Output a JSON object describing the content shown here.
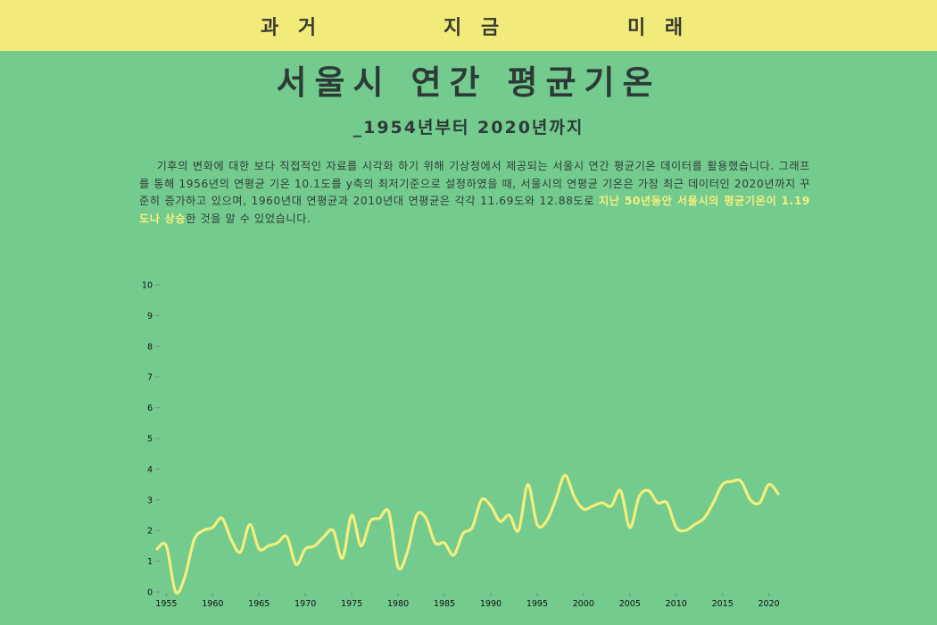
{
  "nav": {
    "items": [
      "과 거",
      "지 금",
      "미 래"
    ]
  },
  "header": {
    "title": "서울시 연간 평균기온",
    "subtitle": "_1954년부터 2020년까지"
  },
  "description": {
    "text_before": "기후의 변화에 대한 보다 직접적인 자료를 시각화 하기 위해 기상청에서 제공되는 서울시 연간 평균기온 데이터를 활용했습니다. 그래프를 통해 1956년의 연평균 기온 10.1도를 y축의 최저기준으로 설정하였을 때, 서울시의 연평균 기온은 가장 최근 데이터인 2020년까지 꾸준히 증가하고 있으며, 1960년대 연평균과 2010년대 연평균은 각각 11.69도와 12.88도로 ",
    "highlight": "지난 50년동안 서울시의 평균기온이 1.19도나 상승",
    "text_after": "한 것을 알 수 있었습니다."
  },
  "colors": {
    "background": "#74cb8e",
    "nav_background": "#f1ec7a",
    "line": "#f4ee7c",
    "highlight_text": "#f6ef7c"
  },
  "chart_data": {
    "type": "line",
    "title": "",
    "xlabel": "",
    "ylabel": "",
    "x_ticks": [
      1955,
      1960,
      1965,
      1970,
      1975,
      1980,
      1985,
      1990,
      1995,
      2000,
      2005,
      2010,
      2015,
      2020
    ],
    "y_ticks": [
      0,
      1,
      2,
      3,
      4,
      5,
      6,
      7,
      8,
      9,
      10
    ],
    "xlim": [
      1954,
      2021
    ],
    "ylim": [
      0,
      10
    ],
    "grid": false,
    "series": [
      {
        "x": [
          1954,
          1955,
          1956,
          1957,
          1958,
          1959,
          1960,
          1961,
          1962,
          1963,
          1964,
          1965,
          1966,
          1967,
          1968,
          1969,
          1970,
          1971,
          1972,
          1973,
          1974,
          1975,
          1976,
          1977,
          1978,
          1979,
          1980,
          1981,
          1982,
          1983,
          1984,
          1985,
          1986,
          1987,
          1988,
          1989,
          1990,
          1991,
          1992,
          1993,
          1994,
          1995,
          1996,
          1997,
          1998,
          1999,
          2000,
          2001,
          2002,
          2003,
          2004,
          2005,
          2006,
          2007,
          2008,
          2009,
          2010,
          2011,
          2012,
          2013,
          2014,
          2015,
          2016,
          2017,
          2018,
          2019,
          2020,
          2021
        ],
        "y": [
          1.4,
          1.5,
          0.0,
          0.5,
          1.7,
          2.0,
          2.1,
          2.4,
          1.7,
          1.3,
          2.2,
          1.4,
          1.5,
          1.6,
          1.8,
          0.9,
          1.4,
          1.5,
          1.8,
          2.0,
          1.1,
          2.5,
          1.5,
          2.3,
          2.4,
          2.6,
          0.8,
          1.3,
          2.5,
          2.4,
          1.6,
          1.6,
          1.2,
          1.9,
          2.1,
          3.0,
          2.8,
          2.3,
          2.5,
          2.0,
          3.5,
          2.2,
          2.3,
          3.0,
          3.8,
          3.1,
          2.7,
          2.8,
          2.9,
          2.8,
          3.3,
          2.1,
          3.1,
          3.3,
          2.9,
          2.9,
          2.1,
          2.0,
          2.2,
          2.4,
          2.9,
          3.5,
          3.6,
          3.6,
          3.0,
          2.9,
          3.5,
          3.2
        ]
      }
    ]
  }
}
